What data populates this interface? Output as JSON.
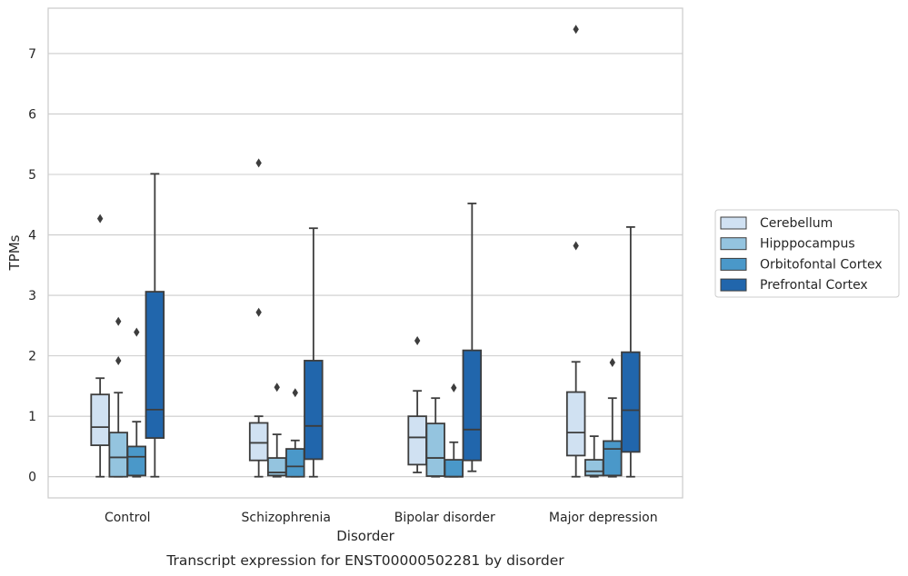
{
  "chart_data": {
    "type": "box",
    "title": "",
    "caption": "Transcript expression for ENST00000502281 by disorder",
    "xlabel": "Disorder",
    "ylabel": "TPMs",
    "ylim": [
      -0.35,
      7.75
    ],
    "yticks": [
      0,
      1,
      2,
      3,
      4,
      5,
      6,
      7
    ],
    "grid": "horizontal",
    "legend_position": "right",
    "categories": [
      "Control",
      "Schizophrenia",
      "Bipolar disorder",
      "Major depression"
    ],
    "series": [
      {
        "name": "Cerebellum",
        "color": "#d0e1f2",
        "boxes": [
          {
            "whislo": 0.0,
            "q1": 0.52,
            "med": 0.82,
            "q3": 1.36,
            "whishi": 1.63,
            "fliers": [
              4.27
            ]
          },
          {
            "whislo": 0.0,
            "q1": 0.27,
            "med": 0.56,
            "q3": 0.89,
            "whishi": 1.0,
            "fliers": [
              2.72,
              5.19
            ]
          },
          {
            "whislo": 0.07,
            "q1": 0.2,
            "med": 0.65,
            "q3": 1.0,
            "whishi": 1.42,
            "fliers": [
              2.25
            ]
          },
          {
            "whislo": 0.0,
            "q1": 0.35,
            "med": 0.73,
            "q3": 1.4,
            "whishi": 1.9,
            "fliers": [
              3.82,
              7.4
            ]
          }
        ]
      },
      {
        "name": "Hipppocampus",
        "color": "#94c4df",
        "boxes": [
          {
            "whislo": 0.0,
            "q1": 0.0,
            "med": 0.32,
            "q3": 0.73,
            "whishi": 1.39,
            "fliers": [
              1.92,
              2.57
            ]
          },
          {
            "whislo": 0.0,
            "q1": 0.02,
            "med": 0.07,
            "q3": 0.31,
            "whishi": 0.7,
            "fliers": [
              1.48
            ]
          },
          {
            "whislo": 0.0,
            "q1": 0.01,
            "med": 0.31,
            "q3": 0.88,
            "whishi": 1.3,
            "fliers": []
          },
          {
            "whislo": 0.0,
            "q1": 0.02,
            "med": 0.09,
            "q3": 0.28,
            "whishi": 0.67,
            "fliers": []
          }
        ]
      },
      {
        "name": "Orbitofontal Cortex",
        "color": "#4a98c9",
        "boxes": [
          {
            "whislo": 0.0,
            "q1": 0.02,
            "med": 0.33,
            "q3": 0.5,
            "whishi": 0.91,
            "fliers": [
              2.39
            ]
          },
          {
            "whislo": 0.0,
            "q1": 0.0,
            "med": 0.17,
            "q3": 0.46,
            "whishi": 0.6,
            "fliers": [
              1.39
            ]
          },
          {
            "whislo": 0.0,
            "q1": 0.0,
            "med": 0.0,
            "q3": 0.28,
            "whishi": 0.57,
            "fliers": [
              1.47
            ]
          },
          {
            "whislo": 0.0,
            "q1": 0.02,
            "med": 0.46,
            "q3": 0.59,
            "whishi": 1.3,
            "fliers": [
              1.89
            ]
          }
        ]
      },
      {
        "name": "Prefrontal Cortex",
        "color": "#2166ac",
        "boxes": [
          {
            "whislo": 0.0,
            "q1": 0.64,
            "med": 1.11,
            "q3": 3.06,
            "whishi": 5.01,
            "fliers": []
          },
          {
            "whislo": 0.0,
            "q1": 0.29,
            "med": 0.84,
            "q3": 1.92,
            "whishi": 4.11,
            "fliers": []
          },
          {
            "whislo": 0.09,
            "q1": 0.27,
            "med": 0.78,
            "q3": 2.09,
            "whishi": 4.52,
            "fliers": []
          },
          {
            "whislo": 0.0,
            "q1": 0.41,
            "med": 1.1,
            "q3": 2.06,
            "whishi": 4.13,
            "fliers": []
          }
        ]
      }
    ]
  }
}
